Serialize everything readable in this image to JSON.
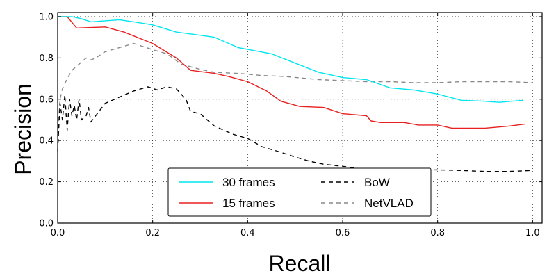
{
  "chart_data": {
    "type": "line",
    "title": "",
    "xlabel": "Recall",
    "ylabel": "Precision",
    "xlim": [
      0,
      1.02
    ],
    "ylim": [
      0,
      1.02
    ],
    "xticks": [
      "0.0",
      "0.2",
      "0.4",
      "0.6",
      "0.8",
      "1.0"
    ],
    "yticks": [
      "0.0",
      "0.2",
      "0.4",
      "0.6",
      "0.8",
      "1.0"
    ],
    "xtick_values": [
      0,
      0.2,
      0.4,
      0.6,
      0.8,
      1.0
    ],
    "ytick_values": [
      0,
      0.2,
      0.4,
      0.6,
      0.8,
      1.0
    ],
    "grid": true,
    "legend_position": "bottom-center",
    "series": [
      {
        "name": "30 frames",
        "color": "#00e5ee",
        "dash": "solid",
        "points": [
          [
            0.0,
            1.0
          ],
          [
            0.03,
            1.0
          ],
          [
            0.05,
            0.99
          ],
          [
            0.07,
            0.975
          ],
          [
            0.1,
            0.98
          ],
          [
            0.13,
            0.985
          ],
          [
            0.16,
            0.975
          ],
          [
            0.2,
            0.96
          ],
          [
            0.25,
            0.925
          ],
          [
            0.3,
            0.91
          ],
          [
            0.33,
            0.9
          ],
          [
            0.38,
            0.85
          ],
          [
            0.45,
            0.82
          ],
          [
            0.5,
            0.775
          ],
          [
            0.55,
            0.73
          ],
          [
            0.6,
            0.705
          ],
          [
            0.65,
            0.695
          ],
          [
            0.7,
            0.655
          ],
          [
            0.75,
            0.645
          ],
          [
            0.8,
            0.625
          ],
          [
            0.85,
            0.595
          ],
          [
            0.9,
            0.59
          ],
          [
            0.93,
            0.585
          ],
          [
            0.98,
            0.595
          ]
        ]
      },
      {
        "name": "15 frames",
        "color": "#e82020",
        "dash": "solid",
        "points": [
          [
            0.0,
            1.0
          ],
          [
            0.02,
            1.0
          ],
          [
            0.04,
            0.945
          ],
          [
            0.1,
            0.95
          ],
          [
            0.14,
            0.925
          ],
          [
            0.2,
            0.87
          ],
          [
            0.25,
            0.8
          ],
          [
            0.28,
            0.74
          ],
          [
            0.33,
            0.725
          ],
          [
            0.36,
            0.71
          ],
          [
            0.4,
            0.685
          ],
          [
            0.44,
            0.64
          ],
          [
            0.47,
            0.59
          ],
          [
            0.51,
            0.565
          ],
          [
            0.56,
            0.56
          ],
          [
            0.6,
            0.53
          ],
          [
            0.65,
            0.52
          ],
          [
            0.66,
            0.495
          ],
          [
            0.68,
            0.487
          ],
          [
            0.73,
            0.487
          ],
          [
            0.76,
            0.475
          ],
          [
            0.8,
            0.475
          ],
          [
            0.83,
            0.46
          ],
          [
            0.88,
            0.46
          ],
          [
            0.9,
            0.46
          ],
          [
            0.95,
            0.47
          ],
          [
            0.985,
            0.48
          ]
        ]
      },
      {
        "name": "BoW",
        "color": "#000000",
        "dash": "6,5",
        "points": [
          [
            0.0,
            0.35
          ],
          [
            0.005,
            0.58
          ],
          [
            0.01,
            0.5
          ],
          [
            0.015,
            0.62
          ],
          [
            0.02,
            0.45
          ],
          [
            0.025,
            0.6
          ],
          [
            0.03,
            0.52
          ],
          [
            0.035,
            0.57
          ],
          [
            0.04,
            0.5
          ],
          [
            0.045,
            0.6
          ],
          [
            0.05,
            0.5
          ],
          [
            0.06,
            0.52
          ],
          [
            0.065,
            0.56
          ],
          [
            0.07,
            0.49
          ],
          [
            0.08,
            0.52
          ],
          [
            0.1,
            0.58
          ],
          [
            0.13,
            0.61
          ],
          [
            0.16,
            0.64
          ],
          [
            0.19,
            0.66
          ],
          [
            0.21,
            0.645
          ],
          [
            0.23,
            0.66
          ],
          [
            0.25,
            0.65
          ],
          [
            0.27,
            0.6
          ],
          [
            0.28,
            0.54
          ],
          [
            0.3,
            0.53
          ],
          [
            0.33,
            0.47
          ],
          [
            0.37,
            0.43
          ],
          [
            0.4,
            0.41
          ],
          [
            0.43,
            0.37
          ],
          [
            0.46,
            0.35
          ],
          [
            0.5,
            0.32
          ],
          [
            0.53,
            0.3
          ],
          [
            0.56,
            0.285
          ],
          [
            0.6,
            0.275
          ],
          [
            0.65,
            0.26
          ],
          [
            0.7,
            0.258
          ],
          [
            0.8,
            0.258
          ],
          [
            0.85,
            0.255
          ],
          [
            0.9,
            0.25
          ],
          [
            0.95,
            0.25
          ],
          [
            1.0,
            0.255
          ]
        ]
      },
      {
        "name": "NetVLAD",
        "color": "#888888",
        "dash": "6,5",
        "points": [
          [
            0.0,
            0.42
          ],
          [
            0.005,
            0.6
          ],
          [
            0.01,
            0.65
          ],
          [
            0.02,
            0.7
          ],
          [
            0.03,
            0.74
          ],
          [
            0.04,
            0.76
          ],
          [
            0.05,
            0.78
          ],
          [
            0.06,
            0.8
          ],
          [
            0.07,
            0.79
          ],
          [
            0.08,
            0.8
          ],
          [
            0.1,
            0.83
          ],
          [
            0.13,
            0.85
          ],
          [
            0.16,
            0.87
          ],
          [
            0.18,
            0.855
          ],
          [
            0.2,
            0.84
          ],
          [
            0.23,
            0.82
          ],
          [
            0.26,
            0.77
          ],
          [
            0.3,
            0.745
          ],
          [
            0.33,
            0.73
          ],
          [
            0.38,
            0.725
          ],
          [
            0.43,
            0.715
          ],
          [
            0.48,
            0.71
          ],
          [
            0.55,
            0.695
          ],
          [
            0.6,
            0.69
          ],
          [
            0.65,
            0.685
          ],
          [
            0.7,
            0.685
          ],
          [
            0.75,
            0.68
          ],
          [
            0.8,
            0.68
          ],
          [
            0.85,
            0.685
          ],
          [
            0.9,
            0.685
          ],
          [
            0.95,
            0.685
          ],
          [
            1.0,
            0.68
          ]
        ]
      }
    ]
  }
}
